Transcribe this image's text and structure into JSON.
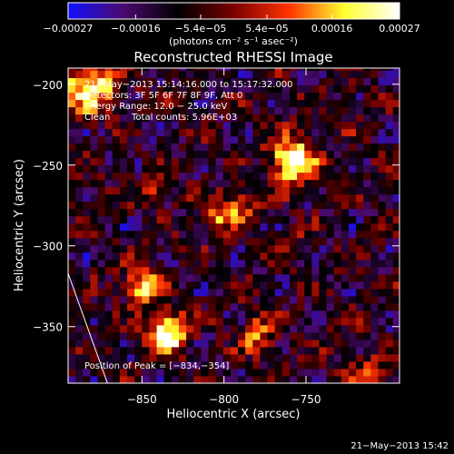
{
  "chart_data": {
    "type": "heatmap",
    "title": "Reconstructed RHESSI Image",
    "xlabel": "Heliocentric X (arcsec)",
    "ylabel": "Heliocentric Y (arcsec)",
    "xlim": [
      -895,
      -693
    ],
    "ylim": [
      -385,
      -190
    ],
    "xticks": [
      {
        "value": -850,
        "label": "−850"
      },
      {
        "value": -800,
        "label": "−800"
      },
      {
        "value": -750,
        "label": "−750"
      }
    ],
    "yticks": [
      {
        "value": -200,
        "label": "−200"
      },
      {
        "value": -250,
        "label": "−250"
      },
      {
        "value": -300,
        "label": "−300"
      },
      {
        "value": -350,
        "label": "−350"
      }
    ],
    "colorbar": {
      "range": [
        -0.00027,
        0.00027
      ],
      "tick_values": [
        -0.00027,
        -0.00016,
        -5.4e-05,
        5.4e-05,
        0.00016,
        0.00027
      ],
      "tick_labels": [
        "−0.00027",
        "−0.00016",
        "−5.4e−05",
        "5.4e−05",
        "0.00016",
        "0.00027"
      ],
      "unit_label": "(photons cm⁻² s⁻¹ asec⁻²)",
      "colors": [
        "#1010ff",
        "#4b0a6e",
        "#000000",
        "#7a0000",
        "#ff3300",
        "#ffff30",
        "#ffffff"
      ]
    },
    "annotations": {
      "time_range": "21−May−2013 15:14:16.000 to 15:17:32.000",
      "detectors": "Detectors: 3F 5F 6F 7F 8F 9F, Att 0",
      "energy": "Energy Range: 12.0 − 25.0 keV",
      "method": "Clean",
      "counts": "Total counts: 5.96E+03",
      "peak": "Position of Peak = [−834,−354]"
    },
    "sources": [
      {
        "x": -758,
        "y": -247,
        "amp": 1.0,
        "sigma": 9
      },
      {
        "x": -834,
        "y": -354,
        "amp": 0.95,
        "sigma": 8
      },
      {
        "x": -850,
        "y": -325,
        "amp": 0.7,
        "sigma": 7
      },
      {
        "x": -882,
        "y": -200,
        "amp": 0.75,
        "sigma": 12
      },
      {
        "x": -805,
        "y": -281,
        "amp": 0.55,
        "sigma": 7
      },
      {
        "x": -790,
        "y": -275,
        "amp": 0.45,
        "sigma": 6
      },
      {
        "x": -780,
        "y": -355,
        "amp": 0.5,
        "sigma": 7
      },
      {
        "x": -842,
        "y": -265,
        "amp": 0.35,
        "sigma": 6
      },
      {
        "x": -710,
        "y": -380,
        "amp": 0.45,
        "sigma": 8
      },
      {
        "x": -760,
        "y": -300,
        "amp": 0.3,
        "sigma": 6
      }
    ],
    "limb": [
      [
        -895,
        -317
      ],
      [
        -871,
        -385
      ]
    ],
    "background_level": -0.35,
    "noise_amplitude": 0.35,
    "pixel_size_arcsec": 4.5
  },
  "footer": {
    "timestamp": "21−May−2013 15:42"
  }
}
